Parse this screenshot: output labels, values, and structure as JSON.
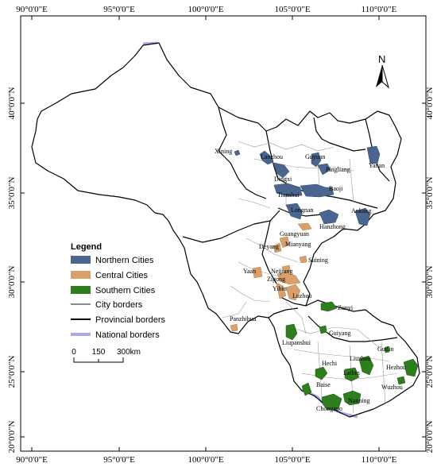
{
  "axes": {
    "lon_labels": [
      "90°0'0\"E",
      "95°0'0\"E",
      "100°0'0\"E",
      "105°0'0\"E",
      "110°0'0\"E"
    ],
    "lat_labels": [
      "40°0'0\"N",
      "35°0'0\"N",
      "30°0'0\"N",
      "25°0'0\"N",
      "20°0'0\"N"
    ]
  },
  "north_arrow": {
    "label": "N"
  },
  "legend": {
    "title": "Legend",
    "items": [
      {
        "label": "Northern Cities",
        "symbol": "fill",
        "color": "#4a6690"
      },
      {
        "label": "Central Cities",
        "symbol": "fill",
        "color": "#d9a06c"
      },
      {
        "label": "Southern Cities",
        "symbol": "fill",
        "color": "#2e7d1e"
      },
      {
        "label": "City borders",
        "symbol": "line",
        "color": "#8a8a8a"
      },
      {
        "label": "Provincial borders",
        "symbol": "line",
        "color": "#000000"
      },
      {
        "label": "National borders",
        "symbol": "line",
        "color": "#a9a9e6"
      }
    ]
  },
  "scale_bar": {
    "labels": [
      "0",
      "150",
      "300km"
    ]
  },
  "cities": {
    "northern": [
      "Xining",
      "Lanzhou",
      "Dingxi",
      "Guyuan",
      "Pingliang",
      "Yanan",
      "Tianshui",
      "Baoji",
      "Longnan",
      "Hanzhong",
      "Ankang"
    ],
    "central": [
      "Guangyuan",
      "Mianyang",
      "Deyang",
      "Suining",
      "Yaan",
      "Neijiang",
      "Zigong",
      "Yibin",
      "Luzhou",
      "Panzhihua"
    ],
    "southern": [
      "Zunyi",
      "Liupanshui",
      "Guiyang",
      "Guilin",
      "Hechi",
      "Liuzhou",
      "Hezhou",
      "Laibin",
      "Baise",
      "Wuzhou",
      "Nanning",
      "Chongzuo"
    ]
  }
}
